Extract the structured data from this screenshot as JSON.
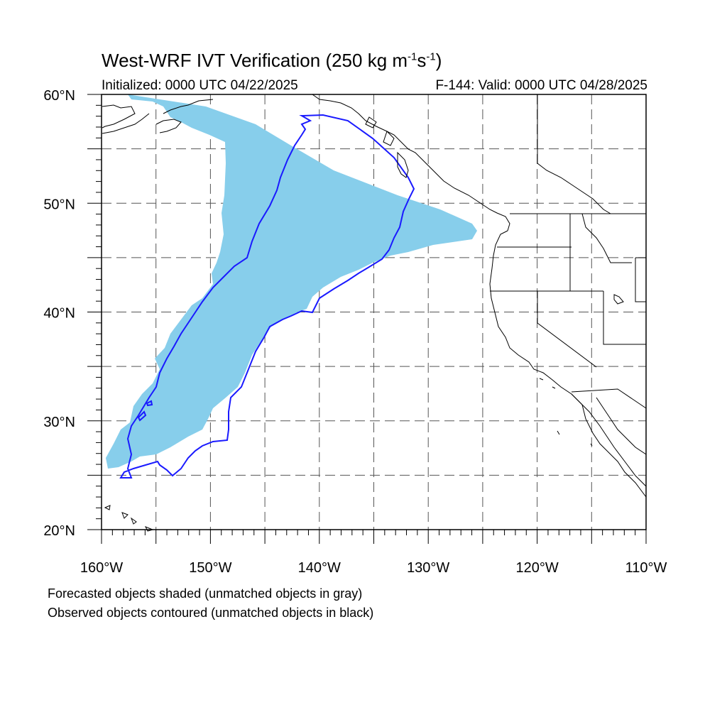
{
  "title": {
    "main": "West-WRF IVT Verification (250 kg m",
    "sup1": "-1",
    "mid": "s",
    "sup2": "-1",
    "close": ")"
  },
  "initialized": "Initialized: 0000 UTC 04/22/2025",
  "valid": "F-144: Valid: 0000 UTC 04/28/2025",
  "lat_labels": [
    {
      "lat": 60,
      "text": "60°N"
    },
    {
      "lat": 50,
      "text": "50°N"
    },
    {
      "lat": 40,
      "text": "40°N"
    },
    {
      "lat": 30,
      "text": "30°N"
    },
    {
      "lat": 20,
      "text": "20°N"
    }
  ],
  "lon_labels": [
    {
      "lon": -160,
      "text": "160°W"
    },
    {
      "lon": -150,
      "text": "150°W"
    },
    {
      "lon": -140,
      "text": "140°W"
    },
    {
      "lon": -130,
      "text": "130°W"
    },
    {
      "lon": -120,
      "text": "120°W"
    },
    {
      "lon": -110,
      "text": "110°W"
    }
  ],
  "captions": {
    "forecast": "Forecasted objects shaded (unmatched objects in gray)",
    "observed": "Observed objects contoured (unmatched objects in black)"
  },
  "map": {
    "lon_range": [
      -160,
      -110
    ],
    "lat_range": [
      20,
      60
    ],
    "grid_spacing_deg": 5,
    "grid_style": "dashed",
    "forecast_fill_color": "#87ceeb",
    "observed_contour_color": "#1a1aff",
    "coast_color": "#000000"
  }
}
